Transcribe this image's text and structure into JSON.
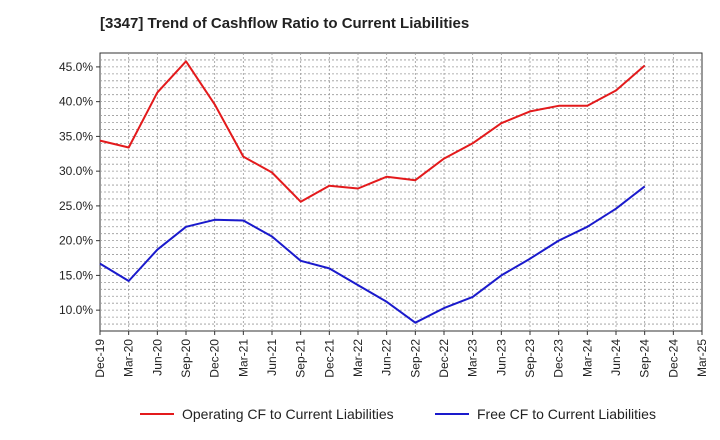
{
  "chart_data": {
    "type": "line",
    "title": "[3347]  Trend of Cashflow Ratio to Current Liabilities",
    "xlabel": "",
    "ylabel": "",
    "x": [
      "Dec-19",
      "Mar-20",
      "Jun-20",
      "Sep-20",
      "Dec-20",
      "Mar-21",
      "Jun-21",
      "Sep-21",
      "Dec-21",
      "Mar-22",
      "Jun-22",
      "Sep-22",
      "Dec-22",
      "Mar-23",
      "Jun-23",
      "Sep-23",
      "Dec-23",
      "Mar-24",
      "Jun-24",
      "Sep-24",
      "Dec-24",
      "Mar-25"
    ],
    "yticks": [
      "10.0%",
      "15.0%",
      "20.0%",
      "25.0%",
      "30.0%",
      "35.0%",
      "40.0%",
      "45.0%"
    ],
    "ytick_values": [
      10,
      15,
      20,
      25,
      30,
      35,
      40,
      45
    ],
    "ylim": [
      7,
      47
    ],
    "grid": true,
    "legend_position": "bottom",
    "series": [
      {
        "name": "Operating CF to Current Liabilities",
        "color": "#e31a1c",
        "values": [
          34.4,
          33.4,
          41.3,
          45.8,
          39.6,
          32.1,
          29.8,
          25.6,
          27.9,
          27.5,
          29.2,
          28.7,
          31.8,
          34.0,
          36.9,
          38.6,
          39.4,
          39.4,
          41.6,
          45.2,
          null,
          null
        ]
      },
      {
        "name": "Free CF to Current Liabilities",
        "color": "#1a1acc",
        "values": [
          16.7,
          14.2,
          18.7,
          22.0,
          23.0,
          22.9,
          20.6,
          17.1,
          16.0,
          13.6,
          11.2,
          8.2,
          10.3,
          11.9,
          15.0,
          17.4,
          20.0,
          22.0,
          24.6,
          27.8,
          null,
          null
        ]
      }
    ]
  }
}
